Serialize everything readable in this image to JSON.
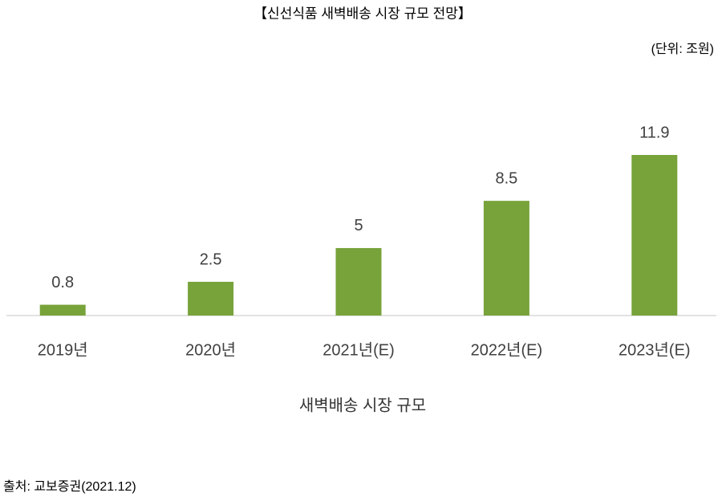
{
  "chart_data": {
    "type": "bar",
    "title": "【신선식품 새벽배송 시장 규모 전망】",
    "unit_label": "(단위: 조원)",
    "x_label": "새벽배송 시장 규모",
    "source": "출처: 교보증권(2021.12)",
    "categories": [
      "2019년",
      "2020년",
      "2021년(E)",
      "2022년(E)",
      "2023년(E)"
    ],
    "values": [
      0.8,
      2.5,
      5,
      8.5,
      11.9
    ],
    "color": "#77a33a"
  }
}
